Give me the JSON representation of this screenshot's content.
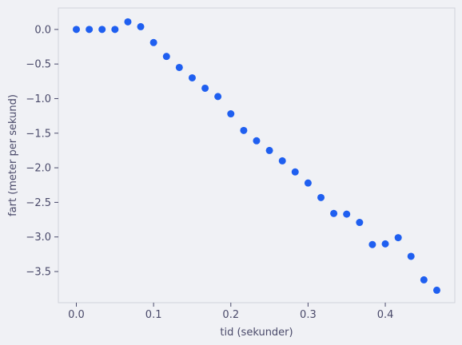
{
  "chart_data": {
    "type": "scatter",
    "title": "",
    "xlabel": "tid (sekunder)",
    "ylabel": "fart (meter per sekund)",
    "xlim": [
      -0.0233,
      0.49
    ],
    "ylim": [
      -3.95,
      0.31
    ],
    "grid": false,
    "x_ticks": [
      0.0,
      0.1,
      0.2,
      0.3,
      0.4
    ],
    "x_tick_labels": [
      "0.0",
      "0.1",
      "0.2",
      "0.3",
      "0.4"
    ],
    "y_ticks": [
      0.0,
      -0.5,
      -1.0,
      -1.5,
      -2.0,
      -2.5,
      -3.0,
      -3.5
    ],
    "y_tick_labels": [
      "0.0",
      "−0.5",
      "−1.0",
      "−1.5",
      "−2.0",
      "−2.5",
      "−3.0",
      "−3.5"
    ],
    "marker_color": "#1f5ff0",
    "series": [
      {
        "x": [
          0.0,
          0.0167,
          0.0333,
          0.05,
          0.0667,
          0.0833,
          0.1,
          0.1167,
          0.1333,
          0.15,
          0.1667,
          0.1833,
          0.2,
          0.2167,
          0.2333,
          0.25,
          0.2667,
          0.2833,
          0.3,
          0.3167,
          0.3333,
          0.35,
          0.3667,
          0.3833,
          0.4,
          0.4167,
          0.4333,
          0.45,
          0.4667
        ],
        "y": [
          0.0,
          0.0,
          0.0,
          0.0,
          0.11,
          0.04,
          -0.19,
          -0.39,
          -0.55,
          -0.7,
          -0.85,
          -0.97,
          -1.22,
          -1.46,
          -1.61,
          -1.75,
          -1.9,
          -2.06,
          -2.22,
          -2.43,
          -2.66,
          -2.67,
          -2.79,
          -3.11,
          -3.1,
          -3.01,
          -3.28,
          -3.62,
          -3.77
        ]
      }
    ]
  }
}
